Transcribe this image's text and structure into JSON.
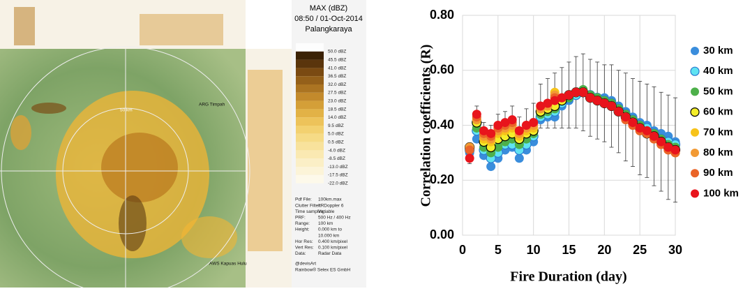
{
  "radar_panel": {
    "title": "MAX (dBZ)",
    "datetime": "08:50 / 01-Oct-2014",
    "station": "Palangkaraya",
    "scale_labels": [
      "50.0 dBZ",
      "45.5 dBZ",
      "41.0 dBZ",
      "36.5 dBZ",
      "32.0 dBZ",
      "27.5 dBZ",
      "23.0 dBZ",
      "18.5 dBZ",
      "14.0 dBZ",
      "9.5 dBZ",
      "5.0 dBZ",
      "0.5 dBZ",
      "-4.0 dBZ",
      "-8.5 dBZ",
      "-13.0 dBZ",
      "-17.5 dBZ",
      "-22.0 dBZ"
    ],
    "info": [
      [
        "Pdf File:",
        "100km.max"
      ],
      [
        "Clutter Filter:",
        "IIRDoppler 6"
      ],
      [
        "Time sampling:",
        "Variable"
      ],
      [
        "PRF:",
        "500 Hz / 400 Hz"
      ],
      [
        "Range:",
        "100 km"
      ],
      [
        "Height:",
        "0.000 km to"
      ],
      [
        "",
        "10.000 km"
      ],
      [
        "Hor Res:",
        "0.400 km/pixel"
      ],
      [
        "Vert Res:",
        "0.100 km/pixel"
      ],
      [
        "Data:",
        "Radar Data"
      ]
    ],
    "credits": [
      "@devisArt",
      "Rainbow® Selex ES GmbH"
    ],
    "map_labels": [
      "ARG Timpah",
      "AWS Kapuas Hulu",
      "50 km"
    ]
  },
  "chart_data": {
    "type": "scatter",
    "xlabel": "Fire Duration (day)",
    "ylabel": "Correlation coefficients (R)",
    "x": [
      1,
      2,
      3,
      4,
      5,
      6,
      7,
      8,
      9,
      10,
      11,
      12,
      13,
      14,
      15,
      16,
      17,
      18,
      19,
      20,
      21,
      22,
      23,
      24,
      25,
      26,
      27,
      28,
      29,
      30
    ],
    "xlim": [
      0,
      30
    ],
    "xticks": [
      0,
      5,
      10,
      15,
      20,
      25,
      30
    ],
    "ylim": [
      0,
      0.8
    ],
    "yticks": [
      {
        "value": 0,
        "label": "0.00"
      },
      {
        "value": 0.2,
        "label": "0.20"
      },
      {
        "value": 0.4,
        "label": "0.40"
      },
      {
        "value": 0.6,
        "label": "0.60"
      },
      {
        "value": 0.8,
        "label": "0.80"
      }
    ],
    "grid": true,
    "legend": "right",
    "series": [
      {
        "name": "30 km",
        "color": "#3a8ddc",
        "values": [
          0.3,
          0.35,
          0.29,
          0.25,
          0.28,
          0.31,
          0.32,
          0.28,
          0.31,
          0.34,
          0.42,
          0.43,
          0.43,
          0.47,
          0.49,
          0.51,
          0.52,
          0.51,
          0.5,
          0.5,
          0.49,
          0.47,
          0.45,
          0.43,
          0.41,
          0.4,
          0.38,
          0.37,
          0.36,
          0.34
        ]
      },
      {
        "name": "40 km",
        "color": "#5fe3f2",
        "edgecolor": "#2a7ad0",
        "values": [
          0.31,
          0.38,
          0.31,
          0.28,
          0.3,
          0.33,
          0.33,
          0.31,
          0.33,
          0.36,
          0.43,
          0.44,
          0.45,
          0.48,
          0.5,
          0.51,
          0.52,
          0.51,
          0.5,
          0.49,
          0.48,
          0.46,
          0.44,
          0.42,
          0.4,
          0.39,
          0.37,
          0.35,
          0.34,
          0.33
        ]
      },
      {
        "name": "50 km",
        "color": "#4db04a",
        "values": [
          0.31,
          0.39,
          0.32,
          0.3,
          0.32,
          0.34,
          0.35,
          0.33,
          0.35,
          0.37,
          0.44,
          0.45,
          0.46,
          0.49,
          0.5,
          0.52,
          0.53,
          0.51,
          0.5,
          0.49,
          0.48,
          0.46,
          0.44,
          0.42,
          0.4,
          0.38,
          0.37,
          0.35,
          0.33,
          0.32
        ]
      },
      {
        "name": "60 km",
        "color": "#f4ee2a",
        "edgecolor": "#000000",
        "values": [
          0.32,
          0.41,
          0.34,
          0.32,
          0.35,
          0.36,
          0.37,
          0.35,
          0.37,
          0.38,
          0.45,
          0.46,
          0.47,
          0.49,
          0.51,
          0.52,
          0.52,
          0.5,
          0.49,
          0.48,
          0.47,
          0.45,
          0.43,
          0.41,
          0.39,
          0.37,
          0.36,
          0.34,
          0.32,
          0.31
        ]
      },
      {
        "name": "70 km",
        "color": "#f7c31a",
        "values": [
          0.32,
          0.42,
          0.35,
          0.34,
          0.37,
          0.38,
          0.39,
          0.36,
          0.38,
          0.39,
          0.46,
          0.47,
          0.52,
          0.5,
          0.51,
          0.52,
          0.52,
          0.5,
          0.49,
          0.48,
          0.47,
          0.45,
          0.43,
          0.41,
          0.39,
          0.37,
          0.35,
          0.33,
          0.32,
          0.3
        ]
      },
      {
        "name": "80 km",
        "color": "#f29a34",
        "values": [
          0.32,
          0.42,
          0.36,
          0.35,
          0.38,
          0.39,
          0.4,
          0.37,
          0.39,
          0.4,
          0.46,
          0.47,
          0.51,
          0.5,
          0.51,
          0.52,
          0.52,
          0.5,
          0.49,
          0.48,
          0.47,
          0.45,
          0.43,
          0.4,
          0.38,
          0.37,
          0.35,
          0.33,
          0.31,
          0.3
        ]
      },
      {
        "name": "90 km",
        "color": "#ea6428",
        "values": [
          0.31,
          0.43,
          0.37,
          0.36,
          0.39,
          0.4,
          0.41,
          0.38,
          0.4,
          0.41,
          0.47,
          0.48,
          0.5,
          0.5,
          0.51,
          0.52,
          0.52,
          0.5,
          0.49,
          0.48,
          0.47,
          0.45,
          0.42,
          0.4,
          0.38,
          0.37,
          0.35,
          0.33,
          0.31,
          0.3
        ]
      },
      {
        "name": "100 km",
        "color": "#e8141c",
        "values": [
          0.28,
          0.44,
          0.38,
          0.37,
          0.4,
          0.41,
          0.42,
          0.38,
          0.4,
          0.41,
          0.47,
          0.48,
          0.49,
          0.5,
          0.51,
          0.52,
          0.52,
          0.5,
          0.49,
          0.48,
          0.47,
          0.45,
          0.43,
          0.41,
          0.39,
          0.38,
          0.36,
          0.34,
          0.32,
          0.31
        ],
        "errors": [
          0.02,
          0.03,
          0.03,
          0.03,
          0.04,
          0.04,
          0.05,
          0.05,
          0.06,
          0.07,
          0.08,
          0.09,
          0.1,
          0.11,
          0.12,
          0.13,
          0.14,
          0.14,
          0.14,
          0.14,
          0.15,
          0.15,
          0.16,
          0.16,
          0.17,
          0.17,
          0.18,
          0.18,
          0.19,
          0.19
        ]
      }
    ]
  }
}
